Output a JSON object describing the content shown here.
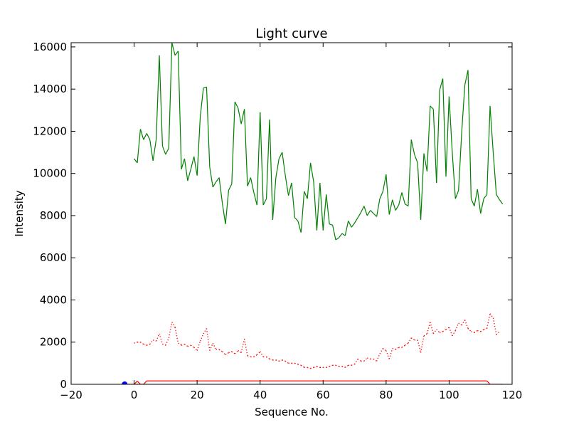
{
  "chart_data": {
    "type": "line",
    "title": "Light curve",
    "xlabel": "Sequence No.",
    "ylabel": "Intensity",
    "xlim": [
      -20,
      120
    ],
    "ylim": [
      0,
      16200
    ],
    "xticks": [
      "−20",
      "0",
      "20",
      "40",
      "60",
      "80",
      "100",
      "120"
    ],
    "yticks": [
      "0",
      "2000",
      "4000",
      "6000",
      "8000",
      "10000",
      "12000",
      "14000",
      "16000"
    ],
    "xtick_values": [
      -20,
      0,
      20,
      40,
      60,
      80,
      100,
      120
    ],
    "ytick_values": [
      0,
      2000,
      4000,
      6000,
      8000,
      10000,
      12000,
      14000,
      16000
    ],
    "grid": false,
    "legend": "none",
    "series": [
      {
        "style": "solid",
        "color": "#008000",
        "x": [
          0,
          1,
          2,
          3,
          4,
          5,
          6,
          7,
          8,
          9,
          10,
          11,
          12,
          13,
          14,
          15,
          16,
          17,
          18,
          19,
          20,
          21,
          22,
          23,
          24,
          25,
          26,
          27,
          28,
          29,
          30,
          31,
          32,
          33,
          34,
          35,
          36,
          37,
          38,
          39,
          40,
          41,
          42,
          43,
          44,
          45,
          46,
          47,
          48,
          49,
          50,
          51,
          52,
          53,
          54,
          55,
          56,
          57,
          58,
          59,
          60,
          61,
          62,
          63,
          64,
          65,
          66,
          67,
          68,
          69,
          70,
          71,
          72,
          73,
          74,
          75,
          76,
          77,
          78,
          79,
          80,
          81,
          82,
          83,
          84,
          85,
          86,
          87,
          88,
          89,
          90,
          91,
          92,
          93,
          94,
          95,
          96,
          97,
          98,
          99,
          100,
          101,
          102,
          103,
          104,
          105,
          106,
          107,
          108,
          109,
          110,
          111,
          112,
          113,
          114,
          115,
          116,
          117
        ],
        "y": [
          10700,
          10500,
          12100,
          11600,
          11900,
          11600,
          10600,
          11600,
          15600,
          11300,
          10900,
          11200,
          16200,
          15600,
          15800,
          10200,
          10700,
          9650,
          10200,
          10800,
          9900,
          12700,
          14050,
          14100,
          10300,
          9350,
          9600,
          9800,
          8600,
          7600,
          9200,
          9500,
          13400,
          13100,
          12350,
          13050,
          9400,
          9800,
          9100,
          8500,
          12900,
          8500,
          8800,
          12550,
          7800,
          9800,
          10700,
          11000,
          9900,
          8950,
          9550,
          7900,
          7750,
          7200,
          9150,
          8800,
          10500,
          9600,
          7300,
          9550,
          7300,
          9000,
          7600,
          7550,
          6850,
          6950,
          7150,
          7050,
          7750,
          7450,
          7650,
          7900,
          8150,
          8450,
          8000,
          8250,
          8100,
          7950,
          8800,
          9150,
          9950,
          8050,
          8750,
          8250,
          8500,
          9100,
          8550,
          8450,
          11600,
          10900,
          10500,
          7800,
          10950,
          10100,
          13200,
          13050,
          9550,
          13950,
          14500,
          9850,
          13650,
          11000,
          8800,
          9200,
          11950,
          14200,
          14900,
          8800,
          8450,
          9250,
          8100,
          8800,
          9000,
          13200,
          11000,
          9000,
          8750,
          8550
        ]
      },
      {
        "style": "dotted",
        "color": "#ff0000",
        "x": [
          0,
          1,
          2,
          3,
          4,
          5,
          6,
          7,
          8,
          9,
          10,
          11,
          12,
          13,
          14,
          15,
          16,
          17,
          18,
          19,
          20,
          21,
          22,
          23,
          24,
          25,
          26,
          27,
          28,
          29,
          30,
          31,
          32,
          33,
          34,
          35,
          36,
          37,
          38,
          39,
          40,
          41,
          42,
          43,
          44,
          45,
          46,
          47,
          48,
          49,
          50,
          51,
          52,
          53,
          54,
          55,
          56,
          57,
          58,
          59,
          60,
          61,
          62,
          63,
          64,
          65,
          66,
          67,
          68,
          69,
          70,
          71,
          72,
          73,
          74,
          75,
          76,
          77,
          78,
          79,
          80,
          81,
          82,
          83,
          84,
          85,
          86,
          87,
          88,
          89,
          90,
          91,
          92,
          93,
          94,
          95,
          96,
          97,
          98,
          99,
          100,
          101,
          102,
          103,
          104,
          105,
          106,
          107,
          108,
          109,
          110,
          111,
          112,
          113,
          114,
          115,
          116
        ],
        "y": [
          1950,
          2000,
          2000,
          1900,
          1850,
          1900,
          2100,
          2050,
          2400,
          1900,
          1850,
          2200,
          2950,
          2700,
          1950,
          1850,
          1900,
          1800,
          1850,
          1750,
          1600,
          2050,
          2400,
          2650,
          1600,
          1950,
          1650,
          1650,
          1550,
          1400,
          1500,
          1550,
          1450,
          1600,
          1500,
          2150,
          1350,
          1300,
          1300,
          1400,
          1550,
          1300,
          1300,
          1200,
          1150,
          1150,
          1100,
          1150,
          1100,
          1000,
          1000,
          1000,
          950,
          900,
          800,
          800,
          750,
          800,
          850,
          800,
          800,
          800,
          850,
          900,
          900,
          850,
          850,
          800,
          900,
          900,
          950,
          1200,
          1100,
          1100,
          1250,
          1200,
          1200,
          1100,
          1450,
          1700,
          1600,
          1200,
          1700,
          1650,
          1750,
          1750,
          1850,
          1950,
          2200,
          2100,
          2100,
          1500,
          2300,
          2400,
          2950,
          2400,
          2600,
          2450,
          2500,
          2600,
          2700,
          2300,
          2550,
          2900,
          2800,
          3050,
          2650,
          2500,
          2450,
          2550,
          2500,
          2600,
          2650,
          3350,
          3150,
          2350,
          2500
        ]
      },
      {
        "style": "solid",
        "color": "#ff0000",
        "x": [
          -3,
          0,
          1,
          2,
          3,
          4,
          112,
          113,
          116,
          117
        ],
        "y": [
          0,
          0,
          150,
          0,
          0,
          160,
          160,
          0,
          0,
          0
        ]
      },
      {
        "style": "marker",
        "color": "#0000ff",
        "x": [
          -3
        ],
        "y": [
          0
        ]
      }
    ]
  }
}
